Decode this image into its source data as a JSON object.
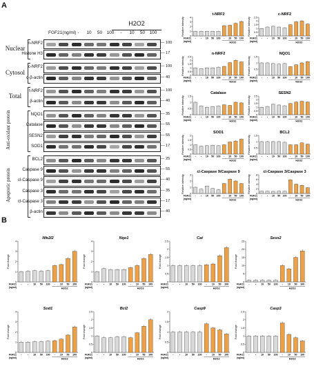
{
  "panel_a": {
    "letter": "A",
    "treatment_label": "FGF21(ng/ml)",
    "dose_cols": [
      "-",
      "-",
      "10",
      "50",
      "100",
      "-",
      "10",
      "50",
      "100"
    ],
    "h2o_label": "H2O2",
    "sections": [
      {
        "name": "Nuclear",
        "proteins": [
          "n-NRF2",
          "Histone H3"
        ],
        "mw": [
          "100",
          "17"
        ]
      },
      {
        "name": "Cytosol",
        "proteins": [
          "c-NRF2",
          "c-β-actin"
        ],
        "mw": [
          "100",
          "40"
        ]
      },
      {
        "name": "Total",
        "proteins": [
          "t-NRF2",
          "β-actin"
        ],
        "mw": [
          "100",
          "40"
        ]
      },
      {
        "name": "Anti-oxidant protein",
        "proteins": [
          "NQO1",
          "Catalase",
          "SESN2",
          "SOD1"
        ],
        "mw": [
          "35",
          "55",
          "55",
          "17"
        ]
      },
      {
        "name": "Apoptotic protein",
        "proteins": [
          "BCL2",
          "Caspase 9",
          "cl-Caspase 9",
          "Caspase 3",
          "cl-Caspase 3",
          "β-actin"
        ],
        "mw": [
          "25",
          "55",
          "40",
          "35",
          "17",
          "40"
        ]
      }
    ]
  },
  "panel_b": {
    "letter": "B"
  },
  "chart_data": [
    {
      "type": "bar",
      "title": "t-NRF2",
      "ylabel": "Relative intensity",
      "ylim": [
        0,
        4
      ],
      "yticks": [
        0,
        1,
        2,
        3,
        4
      ],
      "values": [
        1.0,
        1.0,
        1.0,
        1.0,
        1.0,
        2.2,
        2.3,
        2.7,
        3.1
      ]
    },
    {
      "type": "bar",
      "title": "c-NRF2",
      "ylabel": "Relative intensity",
      "ylim": [
        0,
        2.5
      ],
      "yticks": [
        0,
        0.5,
        1.0,
        1.5,
        2.0,
        2.5
      ],
      "values": [
        1.0,
        1.2,
        1.3,
        1.2,
        1.1,
        1.5,
        1.9,
        2.0,
        1.6
      ]
    },
    {
      "type": "bar",
      "title": "n-NRF2",
      "ylabel": "Relative intensity",
      "ylim": [
        0,
        2.5
      ],
      "yticks": [
        0,
        0.5,
        1.0,
        1.5,
        2.0,
        2.5
      ],
      "values": [
        1.0,
        0.9,
        1.0,
        1.0,
        1.1,
        1.2,
        1.7,
        2.0,
        1.8
      ]
    },
    {
      "type": "bar",
      "title": "NQO1",
      "ylabel": "Relative intensity",
      "ylim": [
        0,
        1.5
      ],
      "yticks": [
        0,
        0.5,
        1.0,
        1.5
      ],
      "values": [
        1.0,
        1.0,
        0.95,
        0.9,
        0.95,
        0.7,
        0.85,
        1.0,
        1.1
      ]
    },
    {
      "type": "bar",
      "title": "Catalase",
      "ylabel": "Relative intensity",
      "ylim": [
        0,
        1.5
      ],
      "yticks": [
        0,
        0.5,
        1.0,
        1.5
      ],
      "values": [
        1.0,
        0.7,
        0.6,
        0.65,
        0.7,
        0.8,
        0.75,
        1.0,
        0.95
      ]
    },
    {
      "type": "bar",
      "title": "SESN2",
      "ylabel": "Relative intensity",
      "ylim": [
        0,
        2.5
      ],
      "yticks": [
        0,
        0.5,
        1.0,
        1.5,
        2.0,
        2.5
      ],
      "values": [
        1.0,
        1.1,
        1.4,
        1.3,
        1.2,
        1.5,
        1.7,
        1.8,
        1.7
      ]
    },
    {
      "type": "bar",
      "title": "SOD1",
      "ylabel": "Relative intensity",
      "ylim": [
        0,
        2.0
      ],
      "yticks": [
        0,
        0.5,
        1.0,
        1.5,
        2.0
      ],
      "values": [
        1.0,
        0.85,
        0.9,
        0.95,
        0.9,
        1.0,
        1.3,
        1.4,
        1.6
      ]
    },
    {
      "type": "bar",
      "title": "BCL2",
      "ylabel": "Relative intensity",
      "ylim": [
        0,
        1.5
      ],
      "yticks": [
        0,
        0.5,
        1.0,
        1.5
      ],
      "values": [
        1.0,
        1.0,
        1.0,
        1.0,
        0.95,
        0.75,
        0.75,
        0.9,
        0.8
      ]
    },
    {
      "type": "bar",
      "title": "cl-Caspase 9/Caspase 9",
      "ylabel": "Relative intensity",
      "ylim": [
        0,
        3
      ],
      "yticks": [
        0,
        1,
        2,
        3
      ],
      "values": [
        1.0,
        0.7,
        1.2,
        0.8,
        0.6,
        1.6,
        2.3,
        2.0,
        1.6
      ]
    },
    {
      "type": "bar",
      "title": "cl-Caspase 3/Caspase 3",
      "ylabel": "Relative intensity",
      "ylim": [
        0,
        8
      ],
      "yticks": [
        0,
        2,
        4,
        6,
        8
      ],
      "values": [
        1.0,
        1.0,
        0.9,
        1.0,
        1.0,
        5.8,
        4.0,
        3.5,
        2.5
      ]
    },
    {
      "type": "bar",
      "title": "Nfe2l2",
      "ylabel": "Fold change",
      "ylim": [
        0,
        4
      ],
      "yticks": [
        0,
        1,
        2,
        3,
        4
      ],
      "values": [
        1.0,
        1.05,
        1.1,
        1.05,
        1.1,
        1.6,
        1.7,
        2.3,
        3.0
      ]
    },
    {
      "type": "bar",
      "title": "Nqo1",
      "ylabel": "Fold change",
      "ylim": [
        0,
        4
      ],
      "yticks": [
        0,
        1,
        2,
        3,
        4
      ],
      "values": [
        1.0,
        1.3,
        1.2,
        1.2,
        1.2,
        1.4,
        1.6,
        2.3,
        2.7
      ]
    },
    {
      "type": "bar",
      "title": "Cat",
      "ylabel": "Fold change",
      "ylim": [
        0,
        2.5
      ],
      "yticks": [
        0,
        0.5,
        1.0,
        1.5,
        2.0,
        2.5
      ],
      "values": [
        1.0,
        1.0,
        1.0,
        1.0,
        1.0,
        1.05,
        1.1,
        1.6,
        2.1
      ]
    },
    {
      "type": "bar",
      "title": "Sesn2",
      "ylabel": "Fold change",
      "ylim": [
        0,
        25
      ],
      "yticks": [
        0,
        5,
        10,
        15,
        20,
        25
      ],
      "values": [
        1,
        1,
        1,
        1,
        1,
        10,
        8,
        15,
        19
      ]
    },
    {
      "type": "bar",
      "title": "Sod1",
      "ylabel": "Fold change",
      "ylim": [
        0,
        4
      ],
      "yticks": [
        0,
        1,
        2,
        3,
        4
      ],
      "values": [
        1.0,
        1.0,
        1.05,
        1.05,
        1.1,
        1.15,
        1.3,
        1.7,
        2.5
      ]
    },
    {
      "type": "bar",
      "title": "Bcl2",
      "ylabel": "Fold change",
      "ylim": [
        0,
        2.5
      ],
      "yticks": [
        0,
        0.5,
        1.0,
        1.5,
        2.0,
        2.5
      ],
      "values": [
        1.0,
        0.9,
        0.9,
        0.95,
        0.95,
        0.9,
        1.2,
        1.6,
        2.0
      ]
    },
    {
      "type": "bar",
      "title": "Casp9",
      "ylabel": "Fold change",
      "ylim": [
        0,
        2.0
      ],
      "yticks": [
        0,
        0.5,
        1.0,
        1.5,
        2.0
      ],
      "values": [
        1.0,
        1.0,
        1.0,
        1.0,
        1.0,
        1.4,
        1.2,
        1.1,
        0.9
      ]
    },
    {
      "type": "bar",
      "title": "Casp3",
      "ylabel": "Fold change",
      "ylim": [
        0,
        2.5
      ],
      "yticks": [
        0,
        0.5,
        1.0,
        1.5,
        2.0,
        2.5
      ],
      "values": [
        1.0,
        1.0,
        1.0,
        1.0,
        1.0,
        1.8,
        1.1,
        0.9,
        0.7
      ]
    }
  ],
  "chart_common": {
    "x_prefix": "FGF21",
    "x_unit": "(ng/ml)",
    "dose_ticks": [
      "-",
      "-",
      "10",
      "50",
      "100",
      "-",
      "10",
      "50",
      "100"
    ],
    "h2o_label": "H2O2",
    "colors": {
      "control": "#d9d9d9",
      "h2o2": "#f0a040",
      "edge": "#444444"
    }
  }
}
